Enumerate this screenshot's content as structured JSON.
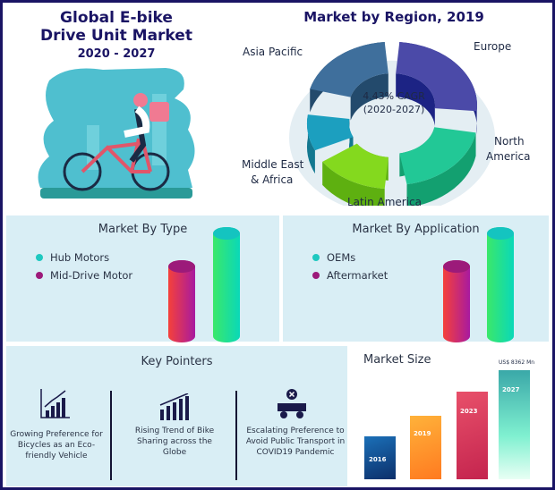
{
  "header": {
    "title_line1": "Global E-bike",
    "title_line2": "Drive Unit Market",
    "years": "2020 - 2027"
  },
  "region": {
    "title": "Market by Region, 2019",
    "cagr": "4.43% CAGR",
    "cagr_period": "(2020-2027)",
    "labels": {
      "europe": "Europe",
      "north_america": "North",
      "north_america2": "America",
      "latin_america": "Latin America",
      "mea": "Middle East",
      "mea2": "& Africa",
      "asia_pacific": "Asia Pacific"
    }
  },
  "by_type": {
    "title": "Market By Type",
    "items": [
      "Hub Motors",
      "Mid-Drive Motor"
    ]
  },
  "by_application": {
    "title": "Market By Application",
    "items": [
      "OEMs",
      "Aftermarket"
    ]
  },
  "key_pointers": {
    "title": "Key Pointers",
    "items": [
      "Growing Preference for Bicycles as an Eco-friendly Vehicle",
      "Rising Trend of Bike Sharing across the Globe",
      "Escalating Preference to Avoid Public Transport in COVID19 Pandemic"
    ]
  },
  "market_size": {
    "title": "Market Size",
    "value_label": "US$ 8362 Mn",
    "years": [
      "2016",
      "2019",
      "2023",
      "2027"
    ]
  },
  "colors": {
    "navy": "#1a1464",
    "teal": "#1ec8c0",
    "purple": "#9c1a7a",
    "panel": "#d9eef5"
  }
}
